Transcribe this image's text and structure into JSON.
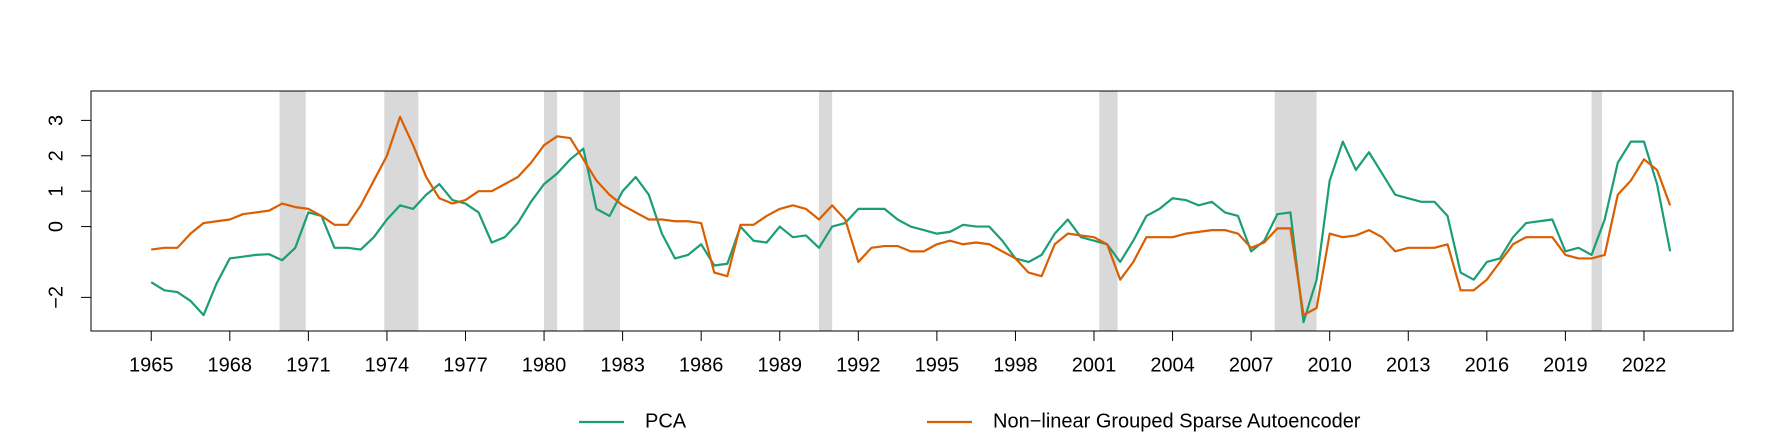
{
  "chart_data": {
    "type": "line",
    "x": [
      1965,
      1965.5,
      1966,
      1966.5,
      1967,
      1967.5,
      1968,
      1968.5,
      1969,
      1969.5,
      1970,
      1970.5,
      1971,
      1971.5,
      1972,
      1972.5,
      1973,
      1973.5,
      1974,
      1974.5,
      1975,
      1975.5,
      1976,
      1976.5,
      1977,
      1977.5,
      1978,
      1978.5,
      1979,
      1979.5,
      1980,
      1980.5,
      1981,
      1981.5,
      1982,
      1982.5,
      1983,
      1983.5,
      1984,
      1984.5,
      1985,
      1985.5,
      1986,
      1986.5,
      1987,
      1987.5,
      1988,
      1988.5,
      1989,
      1989.5,
      1990,
      1990.5,
      1991,
      1991.5,
      1992,
      1992.5,
      1993,
      1993.5,
      1994,
      1994.5,
      1995,
      1995.5,
      1996,
      1996.5,
      1997,
      1997.5,
      1998,
      1998.5,
      1999,
      1999.5,
      2000,
      2000.5,
      2001,
      2001.5,
      2002,
      2002.5,
      2003,
      2003.5,
      2004,
      2004.5,
      2005,
      2005.5,
      2006,
      2006.5,
      2007,
      2007.5,
      2008,
      2008.5,
      2009,
      2009.5,
      2010,
      2010.5,
      2011,
      2011.5,
      2012,
      2012.5,
      2013,
      2013.5,
      2014,
      2014.5,
      2015,
      2015.5,
      2016,
      2016.5,
      2017,
      2017.5,
      2018,
      2018.5,
      2019,
      2019.5,
      2020,
      2020.5,
      2021,
      2021.5,
      2022,
      2022.5,
      2023
    ],
    "series": [
      {
        "name": "PCA",
        "color": "#1b9e77",
        "values": [
          -1.57,
          -1.8,
          -1.85,
          -2.1,
          -2.5,
          -1.6,
          -0.9,
          -0.85,
          -0.8,
          -0.78,
          -0.95,
          -0.6,
          0.4,
          0.3,
          -0.6,
          -0.6,
          -0.65,
          -0.3,
          0.2,
          0.6,
          0.5,
          0.9,
          1.2,
          0.75,
          0.65,
          0.4,
          -0.45,
          -0.3,
          0.1,
          0.7,
          1.2,
          1.5,
          1.9,
          2.2,
          0.5,
          0.3,
          1.0,
          1.4,
          0.9,
          -0.2,
          -0.9,
          -0.8,
          -0.5,
          -1.1,
          -1.05,
          0.0,
          -0.4,
          -0.45,
          0.0,
          -0.3,
          -0.25,
          -0.6,
          0.0,
          0.1,
          0.5,
          0.5,
          0.5,
          0.2,
          0.0,
          -0.1,
          -0.2,
          -0.15,
          0.05,
          0.0,
          0.0,
          -0.4,
          -0.9,
          -1.0,
          -0.8,
          -0.2,
          0.2,
          -0.3,
          -0.4,
          -0.5,
          -1.0,
          -0.4,
          0.3,
          0.5,
          0.8,
          0.75,
          0.6,
          0.7,
          0.4,
          0.3,
          -0.7,
          -0.4,
          0.35,
          0.4,
          -2.7,
          -1.5,
          1.3,
          2.4,
          1.6,
          2.1,
          1.5,
          0.9,
          0.8,
          0.7,
          0.7,
          0.3,
          -1.3,
          -1.5,
          -1.0,
          -0.9,
          -0.3,
          0.1,
          0.15,
          0.2,
          -0.7,
          -0.6,
          -0.8,
          0.2,
          1.8,
          2.4,
          2.4,
          1.2,
          -0.7
        ]
      },
      {
        "name": "Non−linear Grouped Sparse Autoencoder",
        "color": "#d95f02",
        "values": [
          -0.65,
          -0.6,
          -0.6,
          -0.2,
          0.1,
          0.15,
          0.2,
          0.35,
          0.4,
          0.45,
          0.65,
          0.55,
          0.5,
          0.3,
          0.05,
          0.05,
          0.6,
          1.3,
          2.0,
          3.1,
          2.3,
          1.4,
          0.8,
          0.65,
          0.75,
          1.0,
          1.0,
          1.2,
          1.4,
          1.8,
          2.3,
          2.55,
          2.5,
          1.9,
          1.3,
          0.9,
          0.6,
          0.4,
          0.2,
          0.2,
          0.15,
          0.15,
          0.1,
          -1.3,
          -1.4,
          0.05,
          0.05,
          0.3,
          0.5,
          0.6,
          0.5,
          0.2,
          0.6,
          0.2,
          -1.0,
          -0.6,
          -0.55,
          -0.55,
          -0.7,
          -0.7,
          -0.5,
          -0.4,
          -0.5,
          -0.45,
          -0.5,
          -0.7,
          -0.9,
          -1.3,
          -1.4,
          -0.5,
          -0.2,
          -0.25,
          -0.3,
          -0.5,
          -1.5,
          -1.0,
          -0.3,
          -0.3,
          -0.3,
          -0.2,
          -0.15,
          -0.1,
          -0.1,
          -0.2,
          -0.6,
          -0.45,
          -0.05,
          -0.05,
          -2.5,
          -2.3,
          -0.2,
          -0.3,
          -0.25,
          -0.1,
          -0.3,
          -0.7,
          -0.6,
          -0.6,
          -0.6,
          -0.5,
          -1.8,
          -1.8,
          -1.5,
          -1.0,
          -0.5,
          -0.3,
          -0.3,
          -0.3,
          -0.8,
          -0.9,
          -0.9,
          -0.8,
          0.9,
          1.3,
          1.9,
          1.6,
          0.6
        ]
      }
    ],
    "shaded_periods": [
      [
        1969.9,
        1970.9
      ],
      [
        1973.9,
        1975.2
      ],
      [
        1980.0,
        1980.5
      ],
      [
        1981.5,
        1982.9
      ],
      [
        1990.5,
        1991.0
      ],
      [
        2001.2,
        2001.9
      ],
      [
        2007.9,
        2009.5
      ],
      [
        2020.0,
        2020.4
      ]
    ],
    "shade_color": "#d9d9d9",
    "xlim": [
      1962.7,
      2025.4
    ],
    "ylim": [
      -2.95,
      3.83
    ],
    "xticks": [
      1965,
      1968,
      1971,
      1974,
      1977,
      1980,
      1983,
      1986,
      1989,
      1992,
      1995,
      1998,
      2001,
      2004,
      2007,
      2010,
      2013,
      2016,
      2019,
      2022
    ],
    "yticks": [
      {
        "value": -2,
        "label": "−2"
      },
      0,
      1,
      2,
      3
    ],
    "legend": "bottom"
  }
}
